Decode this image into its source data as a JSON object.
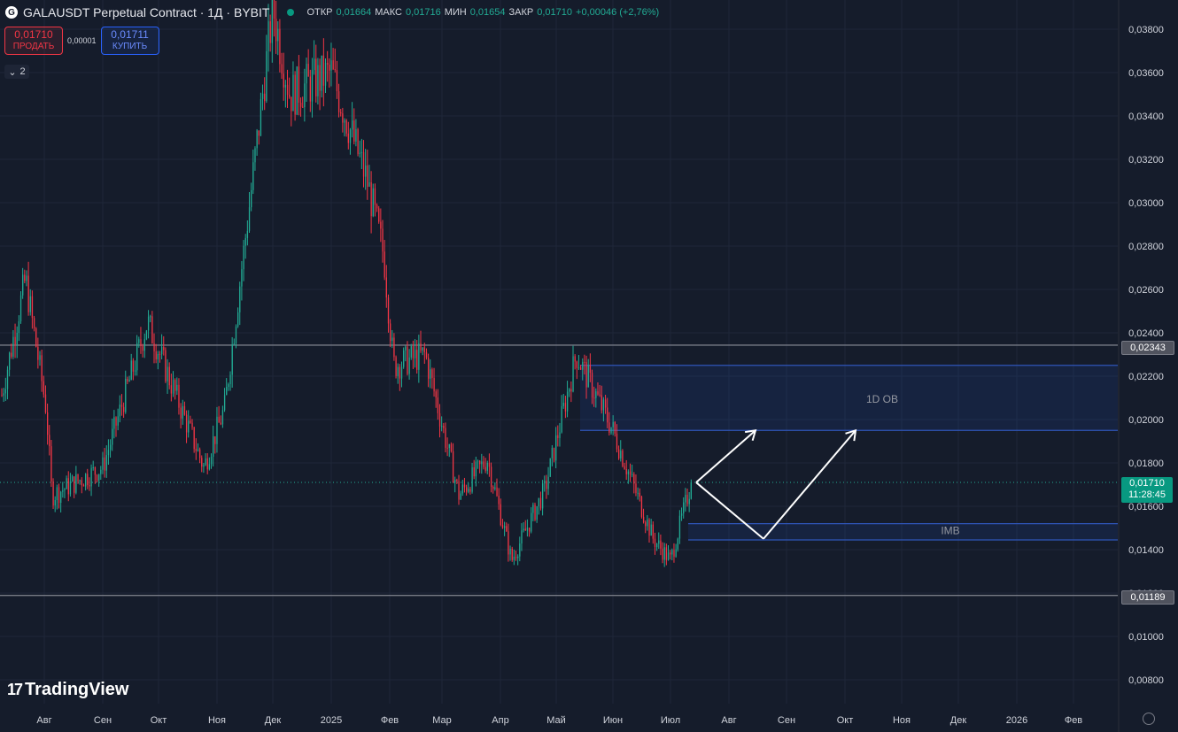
{
  "header": {
    "symbol_icon": "gala-coin-icon",
    "title": "GALAUSDT Perpetual Contract · 1Д · BYBIT",
    "open_label": "ОТКР",
    "open_value": "0,01664",
    "high_label": "МАКС",
    "high_value": "0,01716",
    "low_label": "МИН",
    "low_value": "0,01654",
    "close_label": "ЗАКР",
    "close_value": "0,01710",
    "change": "+0,00046 (+2,76%)"
  },
  "trade": {
    "sell_price": "0,01710",
    "sell_label": "ПРОДАТЬ",
    "spread": "0,00001",
    "buy_price": "0,01711",
    "buy_label": "КУПИТЬ"
  },
  "indicators_toggle": {
    "icon": "chevron-down-icon",
    "count": "2"
  },
  "logo": {
    "text": "TradingView"
  },
  "price_axis": {
    "ticks": [
      {
        "value": 0.038,
        "label": "0,03800"
      },
      {
        "value": 0.036,
        "label": "0,03600"
      },
      {
        "value": 0.034,
        "label": "0,03400"
      },
      {
        "value": 0.032,
        "label": "0,03200"
      },
      {
        "value": 0.03,
        "label": "0,03000"
      },
      {
        "value": 0.028,
        "label": "0,02800"
      },
      {
        "value": 0.026,
        "label": "0,02600"
      },
      {
        "value": 0.024,
        "label": "0,02400"
      },
      {
        "value": 0.022,
        "label": "0,02200"
      },
      {
        "value": 0.02,
        "label": "0,02000"
      },
      {
        "value": 0.018,
        "label": "0,01800"
      },
      {
        "value": 0.016,
        "label": "0,01600"
      },
      {
        "value": 0.014,
        "label": "0,01400"
      },
      {
        "value": 0.012,
        "label": "0,01200"
      },
      {
        "value": 0.01,
        "label": "0,01000"
      },
      {
        "value": 0.008,
        "label": "0,00800"
      }
    ],
    "level_upper": "0,02343",
    "level_lower": "0,01189",
    "current_price": "0,01710",
    "countdown": "11:28:45"
  },
  "time_axis": {
    "labels": [
      "Авг",
      "Сен",
      "Окт",
      "Ноя",
      "Дек",
      "2025",
      "Фев",
      "Мар",
      "Апр",
      "Май",
      "Июн",
      "Июл",
      "Авг",
      "Сен",
      "Окт",
      "Ноя",
      "Дек",
      "2026",
      "Фев"
    ]
  },
  "colors": {
    "background": "#151c2b",
    "up": "#22ab94",
    "down": "#f23645",
    "zone": "#2962ff",
    "level": "#787b86"
  },
  "chart_data": {
    "type": "candlestick",
    "title": "GALAUSDT Perpetual Contract · 1Д · BYBIT",
    "x_axis": "time (daily)",
    "ylim": [
      0.0073,
      0.0395
    ],
    "horizontal_levels": [
      0.02343,
      0.01189
    ],
    "current_price": 0.0171,
    "zones": [
      {
        "label": "1D OB",
        "from": "Май 2025",
        "to": "extends right",
        "low": 0.0195,
        "high": 0.0225
      },
      {
        "label": "IMB",
        "from": "Июл 2025",
        "to": "extends right",
        "low": 0.01445,
        "high": 0.0152
      }
    ],
    "projection_path": [
      {
        "date": "Июл 2025",
        "price": 0.0171
      },
      {
        "date": "Авг 2025",
        "price": 0.0195
      },
      {
        "date": "Авг 2025",
        "price": 0.0171
      },
      {
        "date": "Сен 2025",
        "price": 0.0145
      },
      {
        "date": "Окт 2025",
        "price": 0.0195
      }
    ],
    "series": [
      {
        "name": "GALAUSDT",
        "anchors": [
          {
            "date": "2024-07-15",
            "price": 0.0235
          },
          {
            "date": "2024-07-22",
            "price": 0.0265
          },
          {
            "date": "2024-08-02",
            "price": 0.0205
          },
          {
            "date": "2024-08-05",
            "price": 0.0165
          },
          {
            "date": "2024-09-01",
            "price": 0.0178
          },
          {
            "date": "2024-09-25",
            "price": 0.0245
          },
          {
            "date": "2024-10-25",
            "price": 0.0178
          },
          {
            "date": "2024-11-05",
            "price": 0.0205
          },
          {
            "date": "2024-11-20",
            "price": 0.031
          },
          {
            "date": "2024-12-01",
            "price": 0.039
          },
          {
            "date": "2024-12-10",
            "price": 0.035
          },
          {
            "date": "2025-01-01",
            "price": 0.036
          },
          {
            "date": "2025-01-20",
            "price": 0.031
          },
          {
            "date": "2025-01-29",
            "price": 0.0275
          },
          {
            "date": "2025-02-03",
            "price": 0.0225
          },
          {
            "date": "2025-02-20",
            "price": 0.023
          },
          {
            "date": "2025-03-10",
            "price": 0.0165
          },
          {
            "date": "2025-03-25",
            "price": 0.0182
          },
          {
            "date": "2025-04-07",
            "price": 0.0135
          },
          {
            "date": "2025-04-25",
            "price": 0.0168
          },
          {
            "date": "2025-05-12",
            "price": 0.023
          },
          {
            "date": "2025-06-01",
            "price": 0.0195
          },
          {
            "date": "2025-06-22",
            "price": 0.0145
          },
          {
            "date": "2025-07-01",
            "price": 0.0135
          },
          {
            "date": "2025-07-12",
            "price": 0.0171
          }
        ]
      }
    ]
  }
}
